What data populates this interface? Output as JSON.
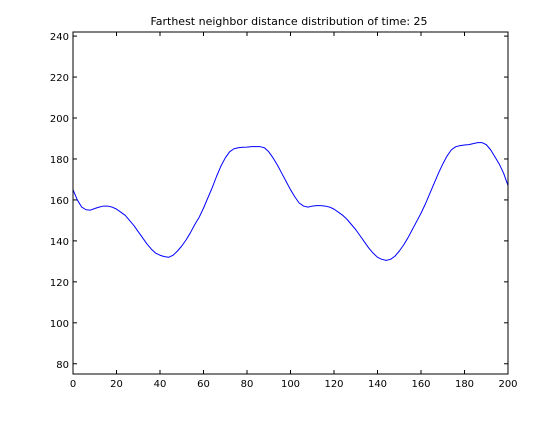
{
  "chart_data": {
    "type": "line",
    "title": "Farthest neighbor distance distribution of time: 25",
    "xlabel": "",
    "ylabel": "",
    "xlim": [
      0,
      200
    ],
    "ylim": [
      75,
      242
    ],
    "grid": false,
    "x_ticks": [
      0,
      20,
      40,
      60,
      80,
      100,
      120,
      140,
      160,
      180,
      200
    ],
    "y_ticks": [
      80,
      100,
      120,
      140,
      160,
      180,
      200,
      220,
      240
    ],
    "x_tick_labels": [
      "0",
      "20",
      "40",
      "60",
      "80",
      "100",
      "120",
      "140",
      "160",
      "180",
      "200"
    ],
    "y_tick_labels": [
      "80",
      "100",
      "120",
      "140",
      "160",
      "180",
      "200",
      "220",
      "240"
    ],
    "series": [
      {
        "color": "#0000ff",
        "x": [
          0,
          2,
          4,
          6,
          8,
          10,
          12,
          14,
          16,
          18,
          20,
          22,
          24,
          26,
          28,
          30,
          32,
          34,
          36,
          38,
          40,
          42,
          44,
          46,
          48,
          50,
          52,
          54,
          56,
          58,
          60,
          62,
          64,
          66,
          68,
          70,
          72,
          74,
          76,
          78,
          80,
          82,
          84,
          86,
          88,
          90,
          92,
          94,
          96,
          98,
          100,
          102,
          104,
          106,
          108,
          110,
          112,
          114,
          116,
          118,
          120,
          122,
          124,
          126,
          128,
          130,
          132,
          134,
          136,
          138,
          140,
          142,
          144,
          146,
          148,
          150,
          152,
          154,
          156,
          158,
          160,
          162,
          164,
          166,
          168,
          170,
          172,
          174,
          176,
          178,
          180,
          182,
          184,
          186,
          188,
          190,
          192,
          194,
          196,
          198,
          200
        ],
        "values": [
          165,
          160,
          156.5,
          155.2,
          155,
          155.8,
          156.5,
          157,
          157,
          156.5,
          155.5,
          154,
          152.5,
          150,
          147.5,
          144.5,
          141.5,
          138.5,
          136,
          134,
          133,
          132.3,
          132,
          133,
          135,
          137.5,
          140.5,
          144,
          148,
          151.5,
          156,
          161,
          166,
          171.5,
          176.5,
          180.5,
          183.5,
          185,
          185.5,
          185.7,
          185.8,
          186,
          186,
          186,
          185.5,
          183.5,
          180.5,
          177,
          173,
          169,
          165,
          161.5,
          158.5,
          157,
          156.5,
          157,
          157.2,
          157.2,
          157,
          156.5,
          155.5,
          154,
          152.5,
          150.5,
          148,
          145.5,
          142.5,
          139.5,
          136.5,
          134,
          132,
          131,
          130.5,
          131,
          132.5,
          135,
          138,
          141.5,
          145.5,
          149.5,
          153.5,
          158,
          163,
          168,
          173,
          177.5,
          181.5,
          184.5,
          186,
          186.5,
          186.8,
          187,
          187.5,
          188,
          188,
          187,
          184.5,
          181,
          177.5,
          173,
          167
        ]
      }
    ]
  }
}
